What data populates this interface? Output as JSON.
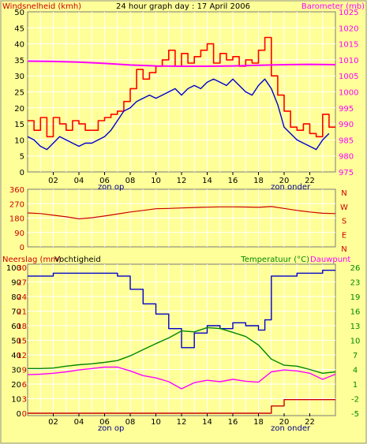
{
  "colors": {
    "background": "#ffff99",
    "frame": "#7a7a7a",
    "grid": "#ffffff",
    "wind_gust": "#ff0000",
    "wind_avg": "#0000cc",
    "barometer": "#ff00ff",
    "direction": "#cc0000",
    "humidity": "#0000cc",
    "temperature": "#008800",
    "dewpoint": "#ff00ff",
    "rain": "#cc0000",
    "humidity_label": "#000000",
    "temp_label": "#008800",
    "dew_label": "#ff00ff",
    "zon_label": "#000088"
  },
  "header": {
    "left_label": "Windsnelheid (kmh)",
    "title": "24 hour graph day : 17 April 2006",
    "right_label": "Barometer (mb)"
  },
  "x_ticks": [
    "02",
    "04",
    "06",
    "08",
    "10",
    "12",
    "14",
    "16",
    "18",
    "20",
    "22"
  ],
  "sun_labels": {
    "sunrise": "zon op",
    "sunset": "zon onder"
  },
  "chart_data": [
    {
      "type": "line",
      "id": "wind-barometer",
      "title": "24 hour graph day : 17 April 2006",
      "xlim": [
        0,
        24
      ],
      "left_axis": {
        "label": "Windsnelheid (kmh)",
        "range": [
          0,
          50
        ],
        "ticks": [
          0,
          5,
          10,
          15,
          20,
          25,
          30,
          35,
          40,
          45,
          50
        ]
      },
      "right_axis": {
        "label": "Barometer (mb)",
        "range": [
          975,
          1025
        ],
        "ticks": [
          975,
          980,
          985,
          990,
          995,
          1000,
          1005,
          1010,
          1015,
          1020,
          1025
        ]
      },
      "grid": true,
      "series": [
        {
          "key": "gust",
          "axis": "left",
          "style": "step",
          "x": [
            0,
            0.5,
            1,
            1.5,
            2,
            2.5,
            3,
            3.5,
            4,
            4.5,
            5,
            5.5,
            6,
            6.5,
            7,
            7.5,
            8,
            8.5,
            9,
            9.5,
            10,
            10.5,
            11,
            11.5,
            12,
            12.5,
            13,
            13.5,
            14,
            14.5,
            15,
            15.5,
            16,
            16.5,
            17,
            17.5,
            18,
            18.5,
            19,
            19.5,
            20,
            20.5,
            21,
            21.5,
            22,
            22.5,
            23,
            23.5
          ],
          "values": [
            16,
            13,
            17,
            11,
            17,
            15,
            13,
            16,
            15,
            13,
            13,
            16,
            17,
            18,
            19,
            22,
            26,
            32,
            29,
            31,
            33,
            35,
            38,
            33,
            37,
            34,
            36,
            38,
            40,
            34,
            37,
            35,
            36,
            33,
            35,
            34,
            38,
            42,
            30,
            24,
            19,
            14,
            13,
            15,
            12,
            11,
            18,
            14
          ]
        },
        {
          "key": "avg",
          "axis": "left",
          "style": "line",
          "x": [
            0,
            0.5,
            1,
            1.5,
            2,
            2.5,
            3,
            3.5,
            4,
            4.5,
            5,
            5.5,
            6,
            6.5,
            7,
            7.5,
            8,
            8.5,
            9,
            9.5,
            10,
            10.5,
            11,
            11.5,
            12,
            12.5,
            13,
            13.5,
            14,
            14.5,
            15,
            15.5,
            16,
            16.5,
            17,
            17.5,
            18,
            18.5,
            19,
            19.5,
            20,
            20.5,
            21,
            21.5,
            22,
            22.5,
            23,
            23.5
          ],
          "values": [
            11,
            10,
            8,
            7,
            9,
            11,
            10,
            9,
            8,
            9,
            9,
            10,
            11,
            13,
            16,
            19,
            20,
            22,
            23,
            24,
            23,
            24,
            25,
            26,
            24,
            26,
            27,
            26,
            28,
            29,
            28,
            27,
            29,
            27,
            25,
            24,
            27,
            29,
            26,
            21,
            14,
            12,
            10,
            9,
            8,
            7,
            10,
            12
          ]
        },
        {
          "key": "barometer",
          "axis": "right",
          "style": "line",
          "x": [
            0,
            2,
            4,
            6,
            8,
            10,
            12,
            14,
            16,
            18,
            20,
            22,
            24
          ],
          "values": [
            1009.6,
            1009.5,
            1009.3,
            1008.9,
            1008.4,
            1008.1,
            1008.0,
            1008.0,
            1008.1,
            1008.3,
            1008.5,
            1008.6,
            1008.5
          ]
        }
      ]
    },
    {
      "type": "line",
      "id": "wind-direction",
      "xlim": [
        0,
        24
      ],
      "left_axis": {
        "range": [
          0,
          360
        ],
        "ticks": [
          0,
          90,
          180,
          270,
          360
        ]
      },
      "right_axis": {
        "ticks": [
          "N",
          "W",
          "S",
          "E",
          "N"
        ]
      },
      "grid": true,
      "series": [
        {
          "key": "direction",
          "axis": "left",
          "style": "line",
          "x": [
            0,
            1,
            2,
            3,
            4,
            5,
            6,
            7,
            8,
            9,
            10,
            11,
            12,
            13,
            14,
            15,
            16,
            17,
            18,
            19,
            20,
            21,
            22,
            23,
            24
          ],
          "values": [
            212,
            208,
            198,
            188,
            175,
            182,
            193,
            205,
            218,
            228,
            238,
            240,
            243,
            246,
            248,
            250,
            250,
            249,
            247,
            252,
            240,
            228,
            218,
            210,
            208
          ]
        }
      ]
    },
    {
      "type": "line",
      "id": "rain-humidity-temp",
      "xlim": [
        0,
        24
      ],
      "left_axis": {
        "labels": [
          "Neerslag (mm)",
          "Vochtigheid"
        ],
        "rain_ticks": [
          0,
          3,
          6,
          9,
          12,
          15,
          18,
          21,
          24,
          27,
          30
        ],
        "humidity_ticks": [
          0,
          10,
          20,
          30,
          40,
          50,
          60,
          70,
          80,
          90,
          100
        ]
      },
      "right_axis": {
        "labels": [
          "Temperatuur (°C)",
          "Dauwpunt"
        ],
        "range": [
          -5,
          26
        ],
        "ticks": [
          -5,
          -2,
          1,
          4,
          7,
          10,
          13,
          16,
          19,
          23,
          26
        ]
      },
      "grid": true,
      "series": [
        {
          "key": "humidity",
          "axis": "humidity",
          "style": "step",
          "x": [
            0,
            1,
            2,
            3,
            4,
            5,
            6,
            7,
            8,
            9,
            10,
            11,
            12,
            13,
            14,
            15,
            16,
            17,
            18,
            18.5,
            19,
            20,
            21,
            22,
            23,
            24
          ],
          "values": [
            94,
            94,
            96,
            96,
            96,
            96,
            96,
            94,
            85,
            75,
            68,
            58,
            45,
            55,
            60,
            58,
            62,
            60,
            57,
            64,
            94,
            94,
            96,
            96,
            98,
            98
          ]
        },
        {
          "key": "temperature",
          "axis": "right",
          "style": "line",
          "x": [
            0,
            1,
            2,
            3,
            4,
            5,
            6,
            7,
            8,
            9,
            10,
            11,
            12,
            13,
            14,
            15,
            16,
            17,
            18,
            19,
            20,
            21,
            22,
            23,
            24
          ],
          "values": [
            4.5,
            4.5,
            4.6,
            5.0,
            5.3,
            5.5,
            5.8,
            6.2,
            7.2,
            8.5,
            9.8,
            11.0,
            12.5,
            12.3,
            13.2,
            13.0,
            12.2,
            11.3,
            9.5,
            6.5,
            5.2,
            5.0,
            4.3,
            3.5,
            3.8
          ]
        },
        {
          "key": "dewpoint",
          "axis": "right",
          "style": "line",
          "x": [
            0,
            1,
            2,
            3,
            4,
            5,
            6,
            7,
            8,
            9,
            10,
            11,
            12,
            13,
            14,
            15,
            16,
            17,
            18,
            19,
            20,
            21,
            22,
            23,
            24
          ],
          "values": [
            3.2,
            3.3,
            3.5,
            3.8,
            4.2,
            4.5,
            4.8,
            4.8,
            4.0,
            3.0,
            2.5,
            1.7,
            0.2,
            1.5,
            2.0,
            1.7,
            2.2,
            1.8,
            1.6,
            3.8,
            4.2,
            4.0,
            3.5,
            2.2,
            3.3
          ]
        },
        {
          "key": "rain",
          "axis": "rain",
          "style": "step",
          "x": [
            0,
            18.5,
            19,
            20,
            24
          ],
          "values": [
            0,
            0,
            1.5,
            2.8,
            2.8
          ]
        }
      ]
    }
  ]
}
